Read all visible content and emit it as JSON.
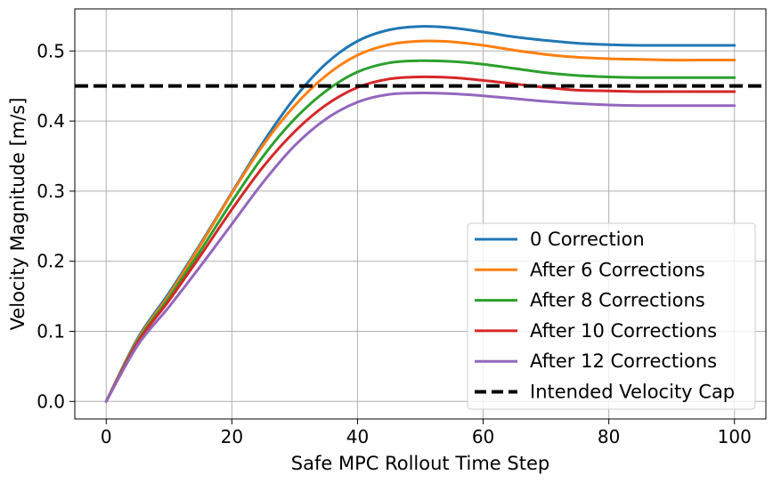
{
  "chart_data": {
    "type": "line",
    "title": "",
    "xlabel": "Safe MPC Rollout Time Step",
    "ylabel": "Velocity Magnitude [m/s]",
    "xlim": [
      -5,
      105
    ],
    "ylim": [
      -0.025,
      0.56
    ],
    "xticks": [
      0,
      20,
      40,
      60,
      80,
      100
    ],
    "yticks": [
      0.0,
      0.1,
      0.2,
      0.3,
      0.4,
      0.5
    ],
    "xtick_labels": [
      "0",
      "20",
      "40",
      "60",
      "80",
      "100"
    ],
    "ytick_labels": [
      "0.0",
      "0.1",
      "0.2",
      "0.3",
      "0.4",
      "0.5"
    ],
    "grid": true,
    "legend_position": "lower-right",
    "x": [
      0,
      5,
      10,
      15,
      20,
      25,
      30,
      35,
      40,
      45,
      50,
      55,
      60,
      65,
      70,
      75,
      80,
      85,
      90,
      95,
      100
    ],
    "series": [
      {
        "name": "0 Correction",
        "color": "#1f77b4",
        "style": "solid",
        "values": [
          0.0,
          0.09,
          0.155,
          0.225,
          0.298,
          0.37,
          0.433,
          0.482,
          0.514,
          0.53,
          0.535,
          0.533,
          0.527,
          0.52,
          0.515,
          0.511,
          0.509,
          0.508,
          0.508,
          0.508,
          0.508
        ]
      },
      {
        "name": "After 6 Corrections",
        "color": "#ff7f0e",
        "style": "solid",
        "values": [
          0.0,
          0.088,
          0.152,
          0.223,
          0.297,
          0.366,
          0.422,
          0.465,
          0.494,
          0.509,
          0.514,
          0.513,
          0.508,
          0.501,
          0.495,
          0.491,
          0.489,
          0.488,
          0.487,
          0.487,
          0.487
        ]
      },
      {
        "name": "After 8 Corrections",
        "color": "#2ca02c",
        "style": "solid",
        "values": [
          0.0,
          0.086,
          0.148,
          0.215,
          0.285,
          0.35,
          0.403,
          0.443,
          0.47,
          0.483,
          0.486,
          0.485,
          0.481,
          0.475,
          0.469,
          0.465,
          0.463,
          0.462,
          0.462,
          0.462,
          0.462
        ]
      },
      {
        "name": "After 10 Corrections",
        "color": "#d62728",
        "style": "solid",
        "values": [
          0.0,
          0.084,
          0.144,
          0.208,
          0.274,
          0.335,
          0.385,
          0.423,
          0.448,
          0.46,
          0.463,
          0.462,
          0.458,
          0.453,
          0.448,
          0.444,
          0.443,
          0.442,
          0.442,
          0.442,
          0.442
        ]
      },
      {
        "name": "After 12 Corrections",
        "color": "#9467bd",
        "style": "solid",
        "values": [
          0.0,
          0.08,
          0.135,
          0.193,
          0.253,
          0.313,
          0.365,
          0.403,
          0.427,
          0.438,
          0.44,
          0.439,
          0.436,
          0.432,
          0.428,
          0.425,
          0.423,
          0.422,
          0.422,
          0.422,
          0.422
        ]
      },
      {
        "name": "Intended Velocity Cap",
        "color": "#000000",
        "style": "dashed",
        "constant": 0.45
      }
    ]
  }
}
